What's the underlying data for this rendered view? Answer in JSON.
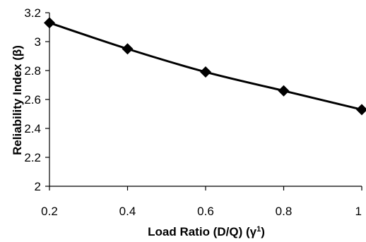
{
  "chart_data": {
    "type": "line",
    "title": "",
    "xlabel": "Load Ratio (D/Q) (γ",
    "xlabel_sup": "1",
    "xlabel_end": ")",
    "ylabel": "Reliability Index (β)",
    "xlim": [
      0.2,
      1
    ],
    "ylim": [
      2,
      3.2
    ],
    "x_ticks": [
      0.2,
      0.4,
      0.6,
      0.8,
      1
    ],
    "x_tick_labels": [
      "0.2",
      "0.4",
      "0.6",
      "0.8",
      "1"
    ],
    "y_ticks": [
      2,
      2.2,
      2.4,
      2.6,
      2.8,
      3,
      3.2
    ],
    "y_tick_labels": [
      "2",
      "2.2",
      "2.4",
      "2.6",
      "2.8",
      "3",
      "3.2"
    ],
    "grid": false,
    "legend": "none",
    "series": [
      {
        "x": [
          0.2,
          0.4,
          0.6,
          0.8,
          1
        ],
        "values": [
          3.13,
          2.95,
          2.79,
          2.66,
          2.53
        ],
        "marker": "diamond",
        "color": "#000000"
      }
    ]
  }
}
